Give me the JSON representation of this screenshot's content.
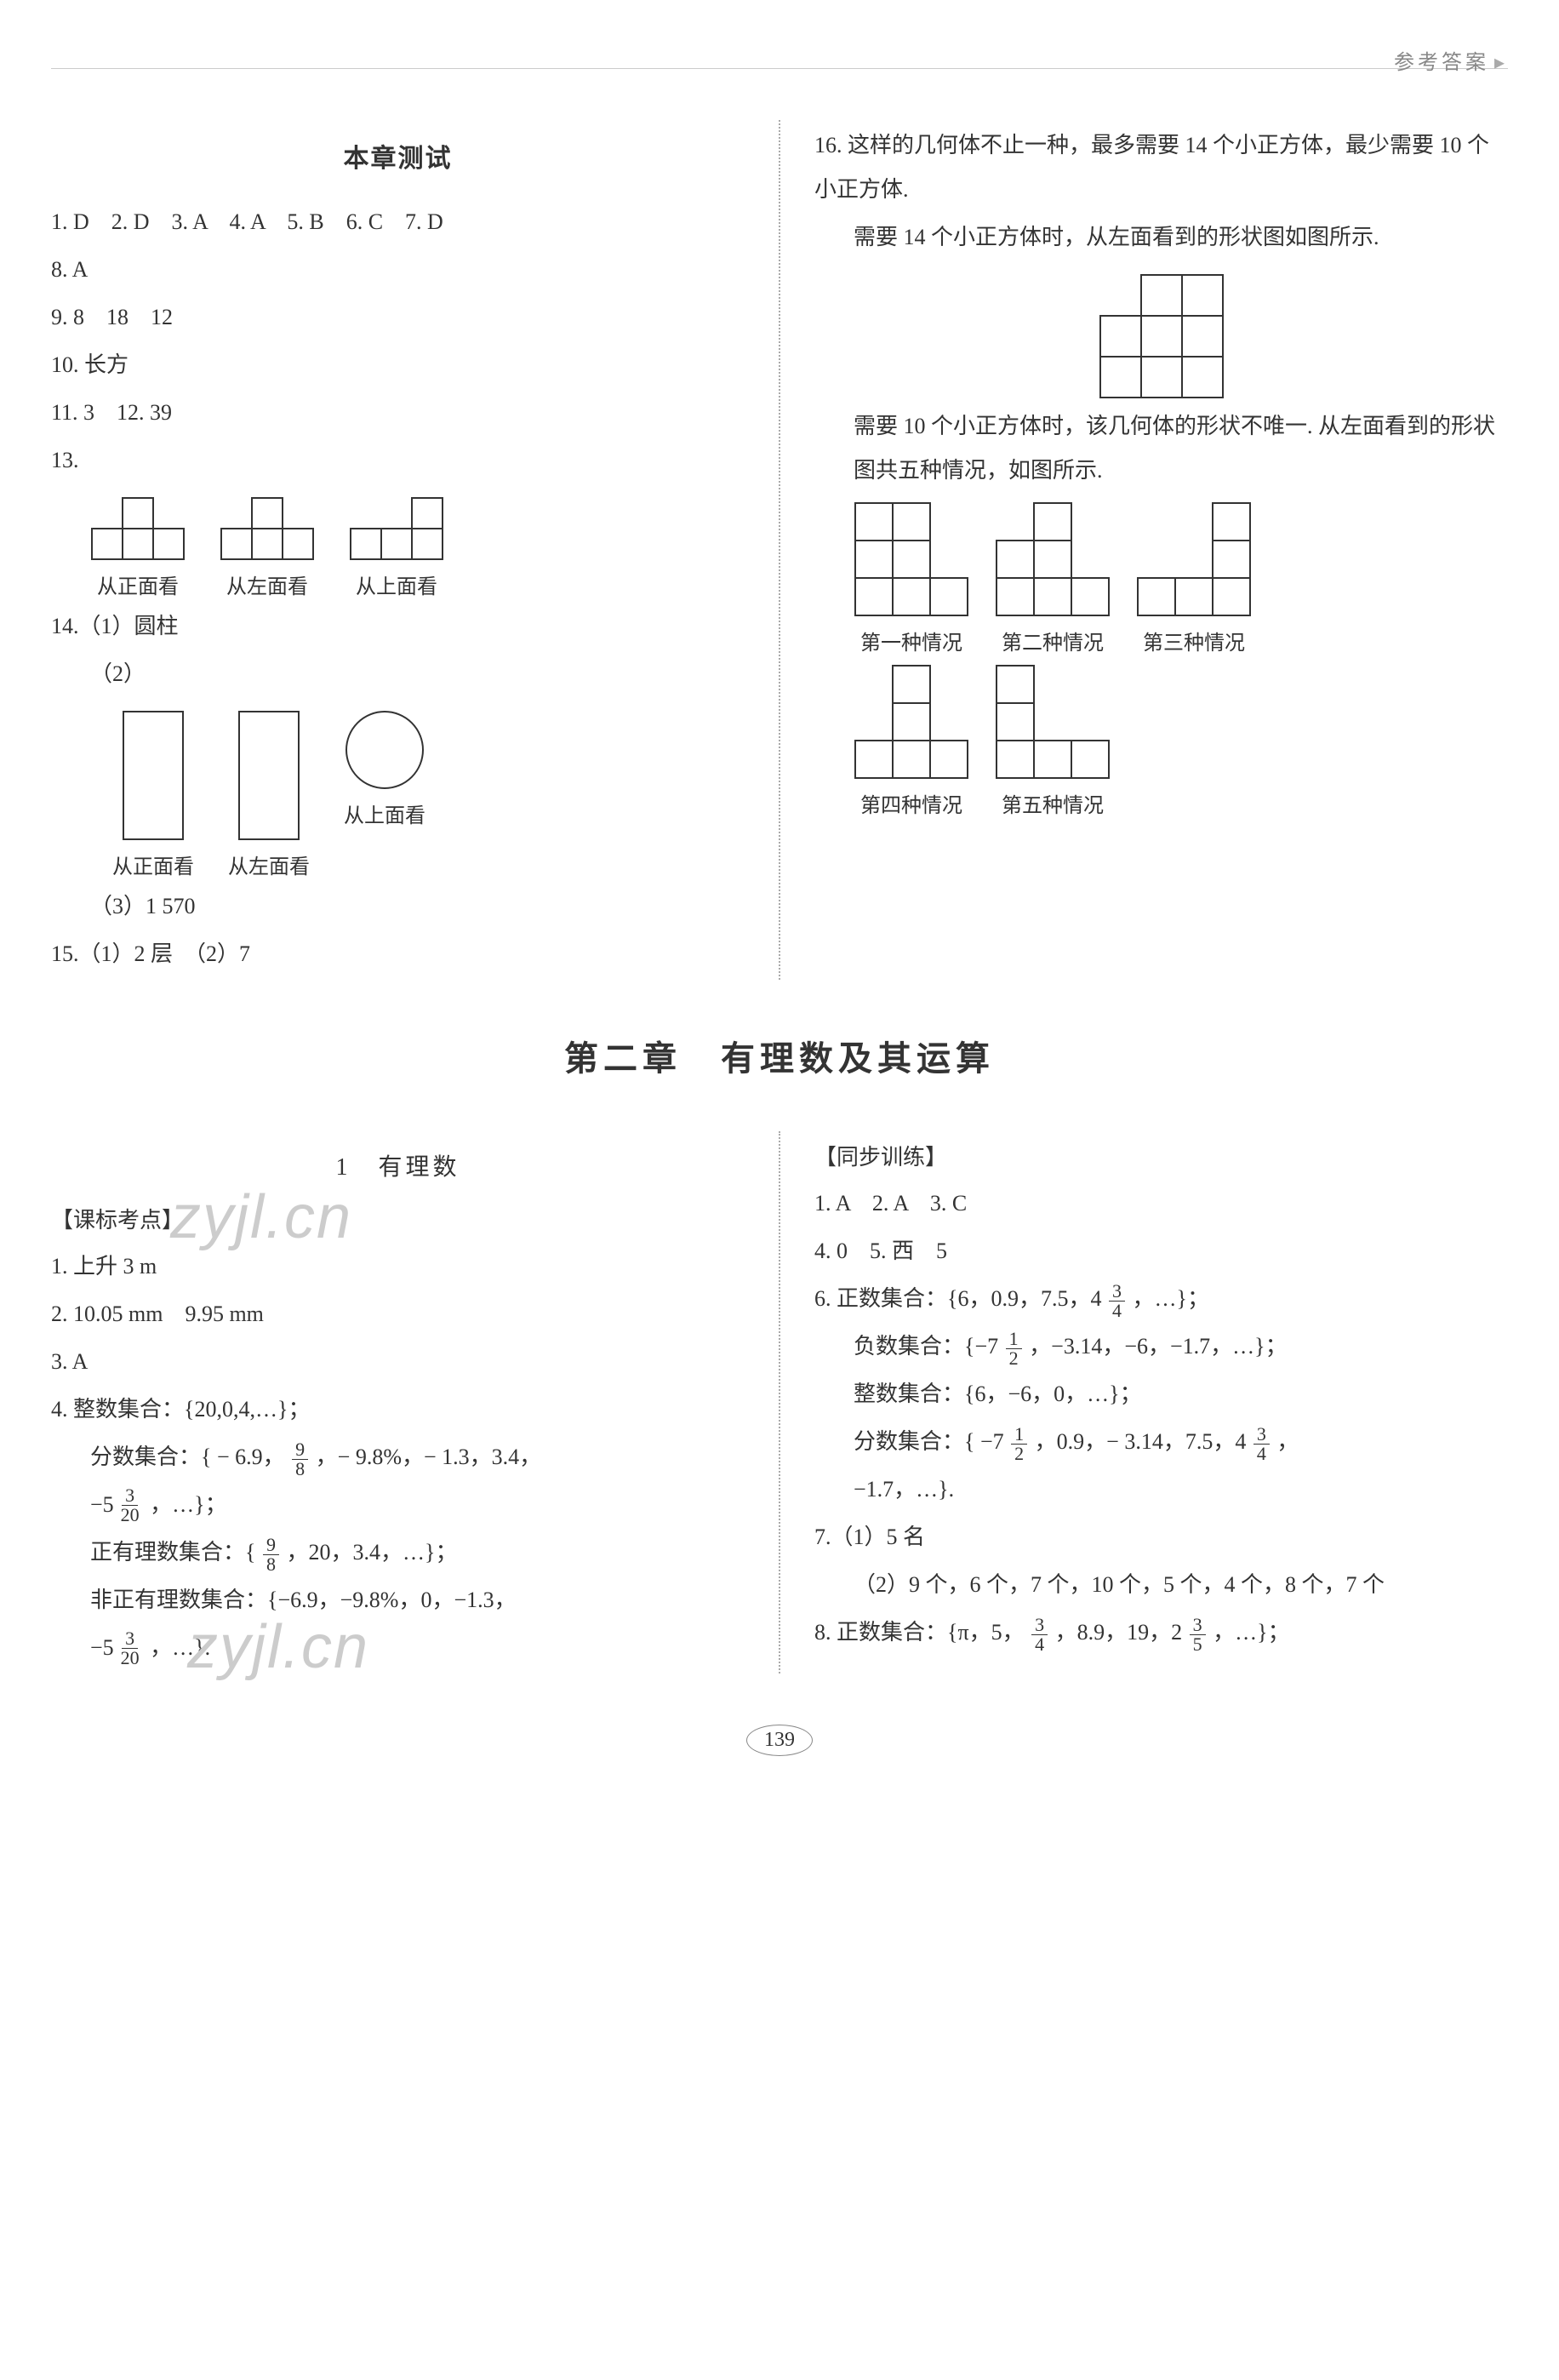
{
  "header": {
    "label": "参考答案"
  },
  "pageNumber": "139",
  "upper": {
    "left": {
      "title": "本章测试",
      "answers_row1": "1. D　2. D　3. A　4. A　5. B　6. C　7. D",
      "answers_row2": "8. A",
      "q9": "9. 8　18　12",
      "q10": "10. 长方",
      "q11": "11. 3　12. 39",
      "q13_label": "13.",
      "fig13": {
        "cell": 36,
        "views": [
          {
            "caption": "从正面看",
            "cells": [
              [
                1,
                0
              ],
              [
                0,
                1
              ],
              [
                1,
                1
              ],
              [
                2,
                1
              ]
            ]
          },
          {
            "caption": "从左面看",
            "cells": [
              [
                1,
                0
              ],
              [
                0,
                1
              ],
              [
                1,
                1
              ],
              [
                2,
                1
              ]
            ]
          },
          {
            "caption": "从上面看",
            "cells": [
              [
                2,
                0
              ],
              [
                0,
                1
              ],
              [
                1,
                1
              ],
              [
                2,
                1
              ]
            ]
          }
        ]
      },
      "q14_1": "14.（1）圆柱",
      "q14_2_label": "（2）",
      "fig14": {
        "rect_w": 70,
        "rect_h": 150,
        "circle_r": 45,
        "captions": [
          "从正面看",
          "从左面看",
          "从上面看"
        ]
      },
      "q14_3": "（3）1 570",
      "q15": "15.（1）2 层　（2）7"
    },
    "right": {
      "q16_a": "16. 这样的几何体不止一种，最多需要 14 个小正方体，最少需要 10 个小正方体.",
      "q16_b": "需要 14 个小正方体时，从左面看到的形状图如图所示.",
      "fig16a": {
        "cell": 48,
        "cells": [
          [
            1,
            0
          ],
          [
            2,
            0
          ],
          [
            0,
            1
          ],
          [
            1,
            1
          ],
          [
            2,
            1
          ],
          [
            0,
            2
          ],
          [
            1,
            2
          ],
          [
            2,
            2
          ]
        ]
      },
      "q16_c": "需要 10 个小正方体时，该几何体的形状不唯一. 从左面看到的形状图共五种情况，如图所示.",
      "fig16b": {
        "cell": 44,
        "cases": [
          {
            "caption": "第一种情况",
            "cells": [
              [
                0,
                0
              ],
              [
                1,
                0
              ],
              [
                0,
                1
              ],
              [
                1,
                1
              ],
              [
                0,
                2
              ],
              [
                1,
                2
              ],
              [
                2,
                2
              ]
            ]
          },
          {
            "caption": "第二种情况",
            "cells": [
              [
                1,
                0
              ],
              [
                0,
                1
              ],
              [
                1,
                1
              ],
              [
                0,
                2
              ],
              [
                1,
                2
              ],
              [
                2,
                2
              ]
            ]
          },
          {
            "caption": "第三种情况",
            "cells": [
              [
                2,
                0
              ],
              [
                2,
                1
              ],
              [
                0,
                2
              ],
              [
                1,
                2
              ],
              [
                2,
                2
              ]
            ]
          },
          {
            "caption": "第四种情况",
            "cells": [
              [
                1,
                0
              ],
              [
                1,
                1
              ],
              [
                0,
                2
              ],
              [
                1,
                2
              ],
              [
                2,
                2
              ]
            ]
          },
          {
            "caption": "第五种情况",
            "cells": [
              [
                0,
                0
              ],
              [
                0,
                1
              ],
              [
                0,
                2
              ],
              [
                1,
                2
              ],
              [
                2,
                2
              ]
            ]
          }
        ]
      }
    }
  },
  "chapter": {
    "title": "第二章　有理数及其运算"
  },
  "lower": {
    "left": {
      "section": "1　有理数",
      "kb_heading": "【课标考点】",
      "l1": "1. 上升 3 m",
      "l2": "2. 10.05 mm　9.95 mm",
      "l3": "3. A",
      "l4a": "4. 整数集合：{20,0,4,…}；",
      "l4b_pre": "分数集合：{ − 6.9，",
      "l4b_frac": {
        "n": "9",
        "d": "8"
      },
      "l4b_mid": "，− 9.8%，− 1.3，3.4，",
      "l4c_pre": "−5 ",
      "l4c_frac": {
        "n": "3",
        "d": "20"
      },
      "l4c_post": "，…}；",
      "l4d_pre": "正有理数集合：{",
      "l4d_frac": {
        "n": "9",
        "d": "8"
      },
      "l4d_post": "，20，3.4，…}；",
      "l4e": "非正有理数集合：{−6.9，−9.8%，0，−1.3，",
      "l4f_pre": "−5 ",
      "l4f_frac": {
        "n": "3",
        "d": "20"
      },
      "l4f_post": "，…}.",
      "watermark1": "zyjl.cn",
      "watermark2": "zyjl.cn"
    },
    "right": {
      "tb_heading": "【同步训练】",
      "r1": "1. A　2. A　3. C",
      "r2": "4. 0　5. 西　5",
      "r3_pre": "6. 正数集合：{6，0.9，7.5，4 ",
      "r3_frac": {
        "n": "3",
        "d": "4"
      },
      "r3_post": "，…}；",
      "r4_pre": "负数集合：{−7 ",
      "r4_frac": {
        "n": "1",
        "d": "2"
      },
      "r4_post": "，−3.14，−6，−1.7，…}；",
      "r5": "整数集合：{6，−6，0，…}；",
      "r6_pre": "分数集合：{ −7 ",
      "r6_f1": {
        "n": "1",
        "d": "2"
      },
      "r6_mid": "，0.9，− 3.14，7.5，4 ",
      "r6_f2": {
        "n": "3",
        "d": "4"
      },
      "r6_post": "，",
      "r6_line2": "−1.7，…}.",
      "r7a": "7.（1）5 名",
      "r7b": "（2）9 个，6 个，7 个，10 个，5 个，4 个，8 个，7 个",
      "r8_pre": "8. 正数集合：{π，5，",
      "r8_f1": {
        "n": "3",
        "d": "4"
      },
      "r8_mid": "，8.9，19，2 ",
      "r8_f2": {
        "n": "3",
        "d": "5"
      },
      "r8_post": "，…}；"
    }
  }
}
